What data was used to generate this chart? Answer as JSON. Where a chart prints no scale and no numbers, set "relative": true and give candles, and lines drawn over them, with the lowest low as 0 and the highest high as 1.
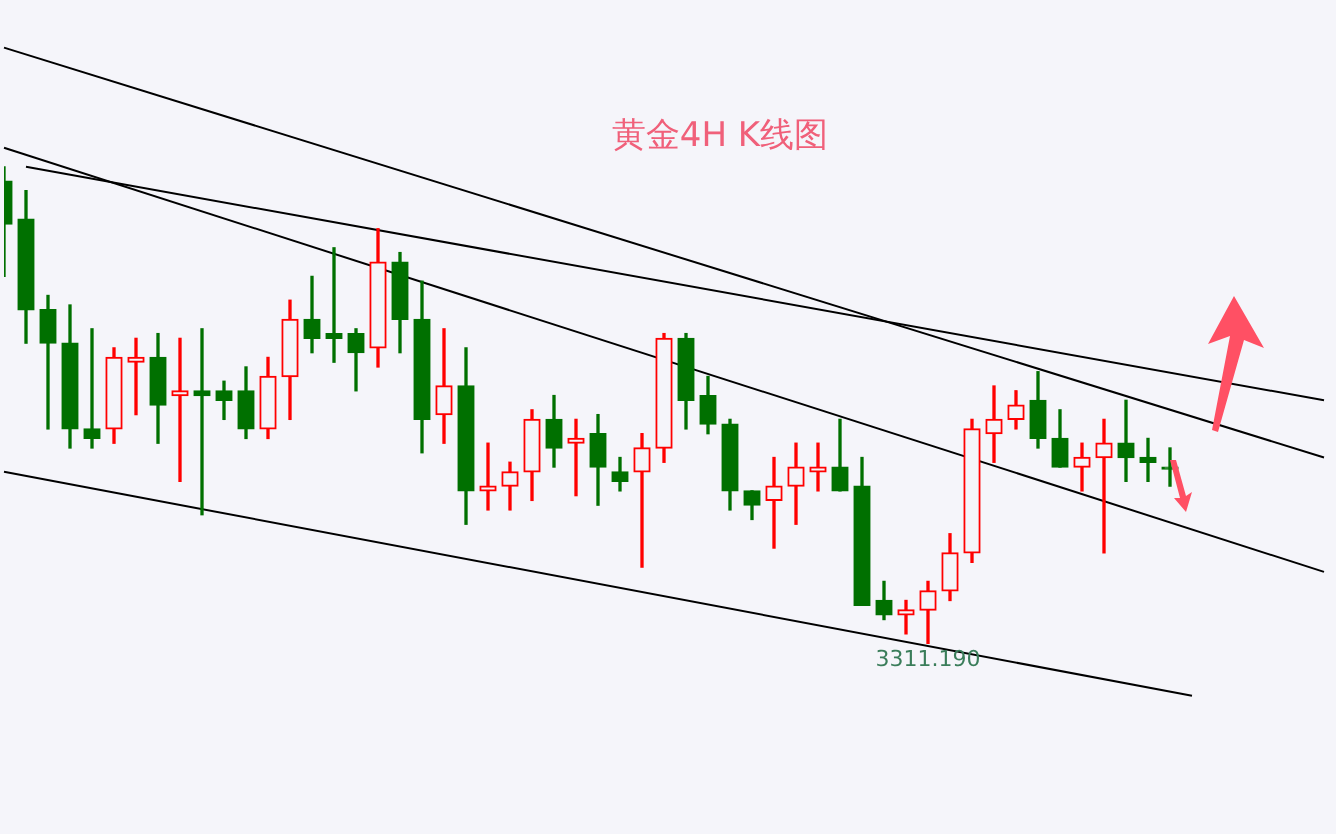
{
  "chart_data": {
    "type": "candlestick",
    "title": "黄金4H K线图",
    "relative": true,
    "categories": [
      null,
      null,
      null,
      null,
      null,
      null,
      null,
      null,
      null,
      null,
      null,
      null,
      null,
      null,
      null,
      null,
      null,
      null,
      null,
      null,
      null,
      null,
      null,
      null,
      null,
      null,
      null,
      null,
      null,
      null,
      null,
      null,
      null,
      null,
      null,
      null,
      null,
      null,
      null,
      null,
      null,
      null,
      null,
      null,
      null,
      null,
      null,
      null,
      null,
      null,
      null,
      null,
      null,
      null,
      null,
      null,
      null,
      null,
      null,
      null,
      null
    ],
    "ohlc": [
      [
        0.97,
        1,
        0.77,
        0.88
      ],
      [
        0.89,
        0.95,
        0.63,
        0.7
      ],
      [
        0.7,
        0.73,
        0.45,
        0.63
      ],
      [
        0.63,
        0.71,
        0.41,
        0.45
      ],
      [
        0.45,
        0.66,
        0.41,
        0.43
      ],
      [
        0.45,
        0.62,
        0.42,
        0.6
      ],
      [
        0.59,
        0.64,
        0.48,
        0.6
      ],
      [
        0.6,
        0.65,
        0.42,
        0.5
      ],
      [
        0.52,
        0.64,
        0.34,
        0.53
      ],
      [
        0.53,
        0.66,
        0.27,
        0.52
      ],
      [
        0.53,
        0.55,
        0.47,
        0.51
      ],
      [
        0.53,
        0.58,
        0.43,
        0.45
      ],
      [
        0.45,
        0.6,
        0.43,
        0.56
      ],
      [
        0.56,
        0.72,
        0.47,
        0.68
      ],
      [
        0.68,
        0.77,
        0.61,
        0.64
      ],
      [
        0.65,
        0.83,
        0.59,
        0.64
      ],
      [
        0.65,
        0.66,
        0.53,
        0.61
      ],
      [
        0.62,
        0.87,
        0.58,
        0.8
      ],
      [
        0.8,
        0.82,
        0.61,
        0.68
      ],
      [
        0.68,
        0.76,
        0.4,
        0.47
      ],
      [
        0.48,
        0.66,
        0.42,
        0.54
      ],
      [
        0.54,
        0.62,
        0.25,
        0.32
      ],
      [
        0.32,
        0.42,
        0.28,
        0.33
      ],
      [
        0.33,
        0.38,
        0.28,
        0.36
      ],
      [
        0.36,
        0.49,
        0.3,
        0.47
      ],
      [
        0.47,
        0.52,
        0.37,
        0.41
      ],
      [
        0.42,
        0.47,
        0.31,
        0.43
      ],
      [
        0.44,
        0.48,
        0.29,
        0.37
      ],
      [
        0.36,
        0.39,
        0.32,
        0.34
      ],
      [
        0.36,
        0.44,
        0.16,
        0.41
      ],
      [
        0.41,
        0.65,
        0.38,
        0.64
      ],
      [
        0.64,
        0.65,
        0.45,
        0.51
      ],
      [
        0.52,
        0.56,
        0.44,
        0.46
      ],
      [
        0.46,
        0.47,
        0.28,
        0.32
      ],
      [
        0.32,
        0.32,
        0.26,
        0.29
      ],
      [
        0.3,
        0.39,
        0.2,
        0.33
      ],
      [
        0.33,
        0.42,
        0.25,
        0.37
      ],
      [
        0.36,
        0.42,
        0.32,
        0.37
      ],
      [
        0.37,
        0.47,
        0.32,
        0.32
      ],
      [
        0.33,
        0.39,
        0.08,
        0.08
      ],
      [
        0.09,
        0.13,
        0.05,
        0.06
      ],
      [
        0.06,
        0.09,
        0.02,
        0.07
      ],
      [
        0.07,
        0.13,
        0,
        0.11
      ],
      [
        0.11,
        0.23,
        0.09,
        0.19
      ],
      [
        0.19,
        0.47,
        0.17,
        0.45
      ],
      [
        0.44,
        0.54,
        0.38,
        0.47
      ],
      [
        0.47,
        0.53,
        0.45,
        0.5
      ],
      [
        0.51,
        0.57,
        0.41,
        0.43
      ],
      [
        0.43,
        0.49,
        0.37,
        0.37
      ],
      [
        0.37,
        0.42,
        0.32,
        0.39
      ],
      [
        0.39,
        0.47,
        0.19,
        0.42
      ],
      [
        0.42,
        0.51,
        0.34,
        0.39
      ],
      [
        0.39,
        0.43,
        0.34,
        0.38
      ],
      [
        0.37,
        0.41,
        0.33,
        0.37
      ],
      null,
      null,
      null,
      null,
      null,
      null,
      null
    ],
    "colors": [
      "#007000",
      "#007000",
      "#007000",
      "#007000",
      "#007000",
      "#ff0000",
      "#ff0000",
      "#007000",
      "#ff0000",
      "#007000",
      "#007000",
      "#007000",
      "#ff0000",
      "#ff0000",
      "#007000",
      "#007000",
      "#007000",
      "#ff0000",
      "#007000",
      "#007000",
      "#ff0000",
      "#007000",
      "#ff0000",
      "#ff0000",
      "#ff0000",
      "#007000",
      "#ff0000",
      "#007000",
      "#007000",
      "#ff0000",
      "#ff0000",
      "#007000",
      "#007000",
      "#007000",
      "#007000",
      "#ff0000",
      "#ff0000",
      "#ff0000",
      "#007000",
      "#007000",
      "#007000",
      "#ff0000",
      "#ff0000",
      "#ff0000",
      "#ff0000",
      "#ff0000",
      "#ff0000",
      "#007000",
      "#007000",
      "#ff0000",
      "#ff0000",
      "#007000",
      "#007000",
      "#007000",
      null,
      null,
      null,
      null,
      null,
      null,
      null
    ],
    "series": [
      {
        "type": "line",
        "color": "#000000",
        "values": [
          1.25,
          null,
          null,
          null,
          null,
          null,
          null,
          null,
          null,
          null,
          null,
          null,
          null,
          null,
          null,
          null,
          null,
          null,
          null,
          null,
          null,
          null,
          null,
          null,
          null,
          null,
          null,
          null,
          null,
          null,
          null,
          null,
          null,
          null,
          null,
          null,
          null,
          null,
          null,
          null,
          null,
          null,
          null,
          null,
          null,
          null,
          null,
          null,
          null,
          null,
          null,
          null,
          null,
          null,
          null,
          null,
          null,
          null,
          null,
          null,
          0.39
        ]
      },
      {
        "type": "line",
        "color": "#000000",
        "values": [
          null,
          1.0,
          null,
          null,
          null,
          null,
          null,
          null,
          null,
          null,
          null,
          null,
          null,
          null,
          null,
          null,
          null,
          null,
          null,
          null,
          null,
          null,
          null,
          null,
          null,
          null,
          null,
          null,
          null,
          null,
          null,
          null,
          null,
          null,
          null,
          null,
          null,
          null,
          null,
          null,
          null,
          null,
          null,
          null,
          null,
          null,
          null,
          null,
          null,
          null,
          null,
          null,
          null,
          null,
          null,
          null,
          null,
          null,
          null,
          null,
          0.51
        ]
      },
      {
        "type": "line",
        "color": "#000000",
        "values": [
          1.04,
          null,
          null,
          null,
          null,
          null,
          null,
          null,
          null,
          null,
          null,
          null,
          null,
          null,
          null,
          null,
          null,
          null,
          null,
          null,
          null,
          null,
          null,
          null,
          null,
          null,
          null,
          null,
          null,
          null,
          null,
          null,
          null,
          null,
          null,
          null,
          null,
          null,
          null,
          null,
          null,
          null,
          null,
          null,
          null,
          null,
          null,
          null,
          null,
          null,
          null,
          null,
          null,
          null,
          null,
          null,
          null,
          null,
          null,
          null,
          0.15
        ]
      },
      {
        "type": "line",
        "color": "#000000",
        "values": [
          0.36,
          null,
          null,
          null,
          null,
          null,
          null,
          null,
          null,
          null,
          null,
          null,
          null,
          null,
          null,
          null,
          null,
          null,
          null,
          null,
          null,
          null,
          null,
          null,
          null,
          null,
          null,
          null,
          null,
          null,
          null,
          null,
          null,
          null,
          null,
          null,
          null,
          null,
          null,
          null,
          null,
          null,
          null,
          null,
          null,
          null,
          null,
          null,
          null,
          null,
          null,
          null,
          null,
          null,
          -0.11,
          null,
          null,
          null,
          null,
          null,
          null
        ]
      }
    ],
    "marker": "none",
    "annotations": [
      {
        "text": "3311.190",
        "y": 0
      }
    ]
  }
}
